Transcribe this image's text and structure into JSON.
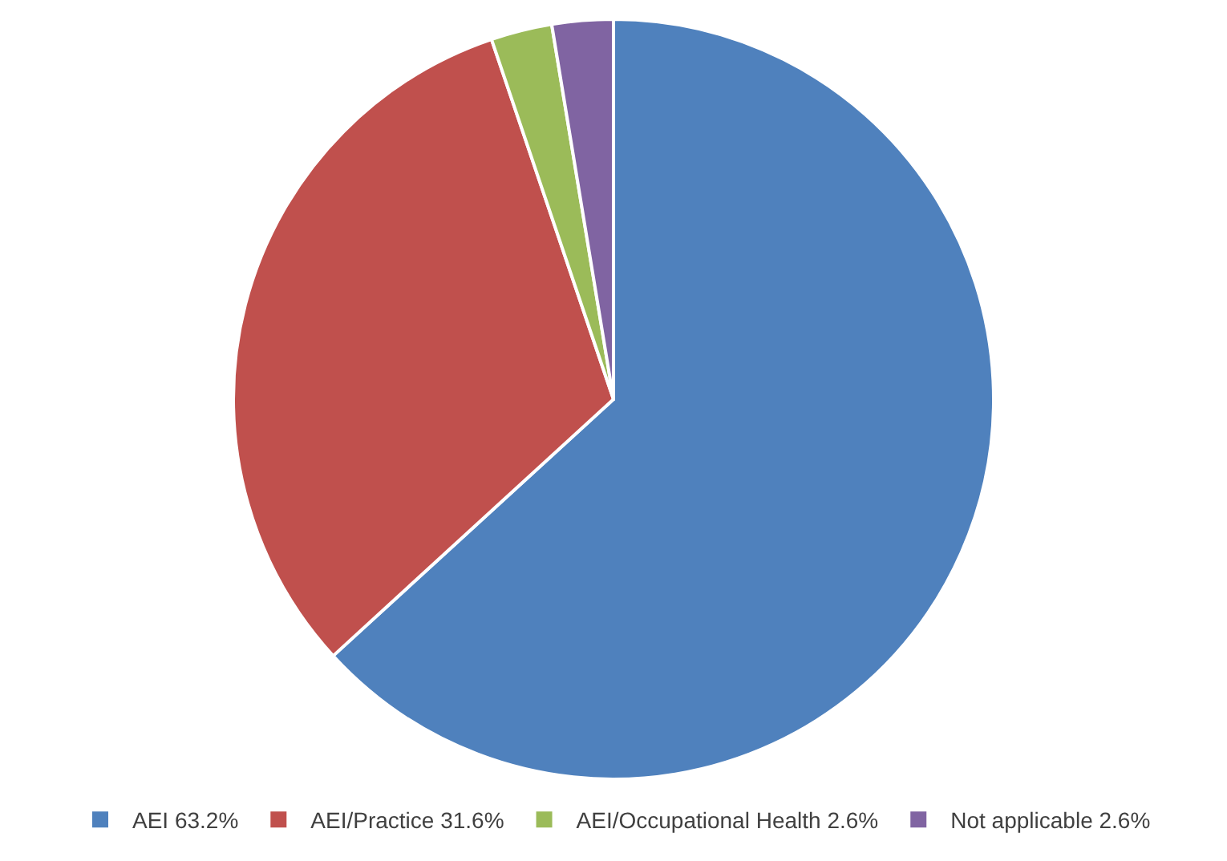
{
  "chart_data": {
    "type": "pie",
    "categories": [
      "AEI 63.2%",
      "AEI/Practice 31.6%",
      "AEI/Occupational Health 2.6%",
      "Not applicable 2.6%"
    ],
    "values": [
      63.2,
      31.6,
      2.6,
      2.6
    ],
    "colors": [
      "#4f81bd",
      "#c0504d",
      "#9bbb59",
      "#8064a2"
    ],
    "legend": "bottom"
  }
}
